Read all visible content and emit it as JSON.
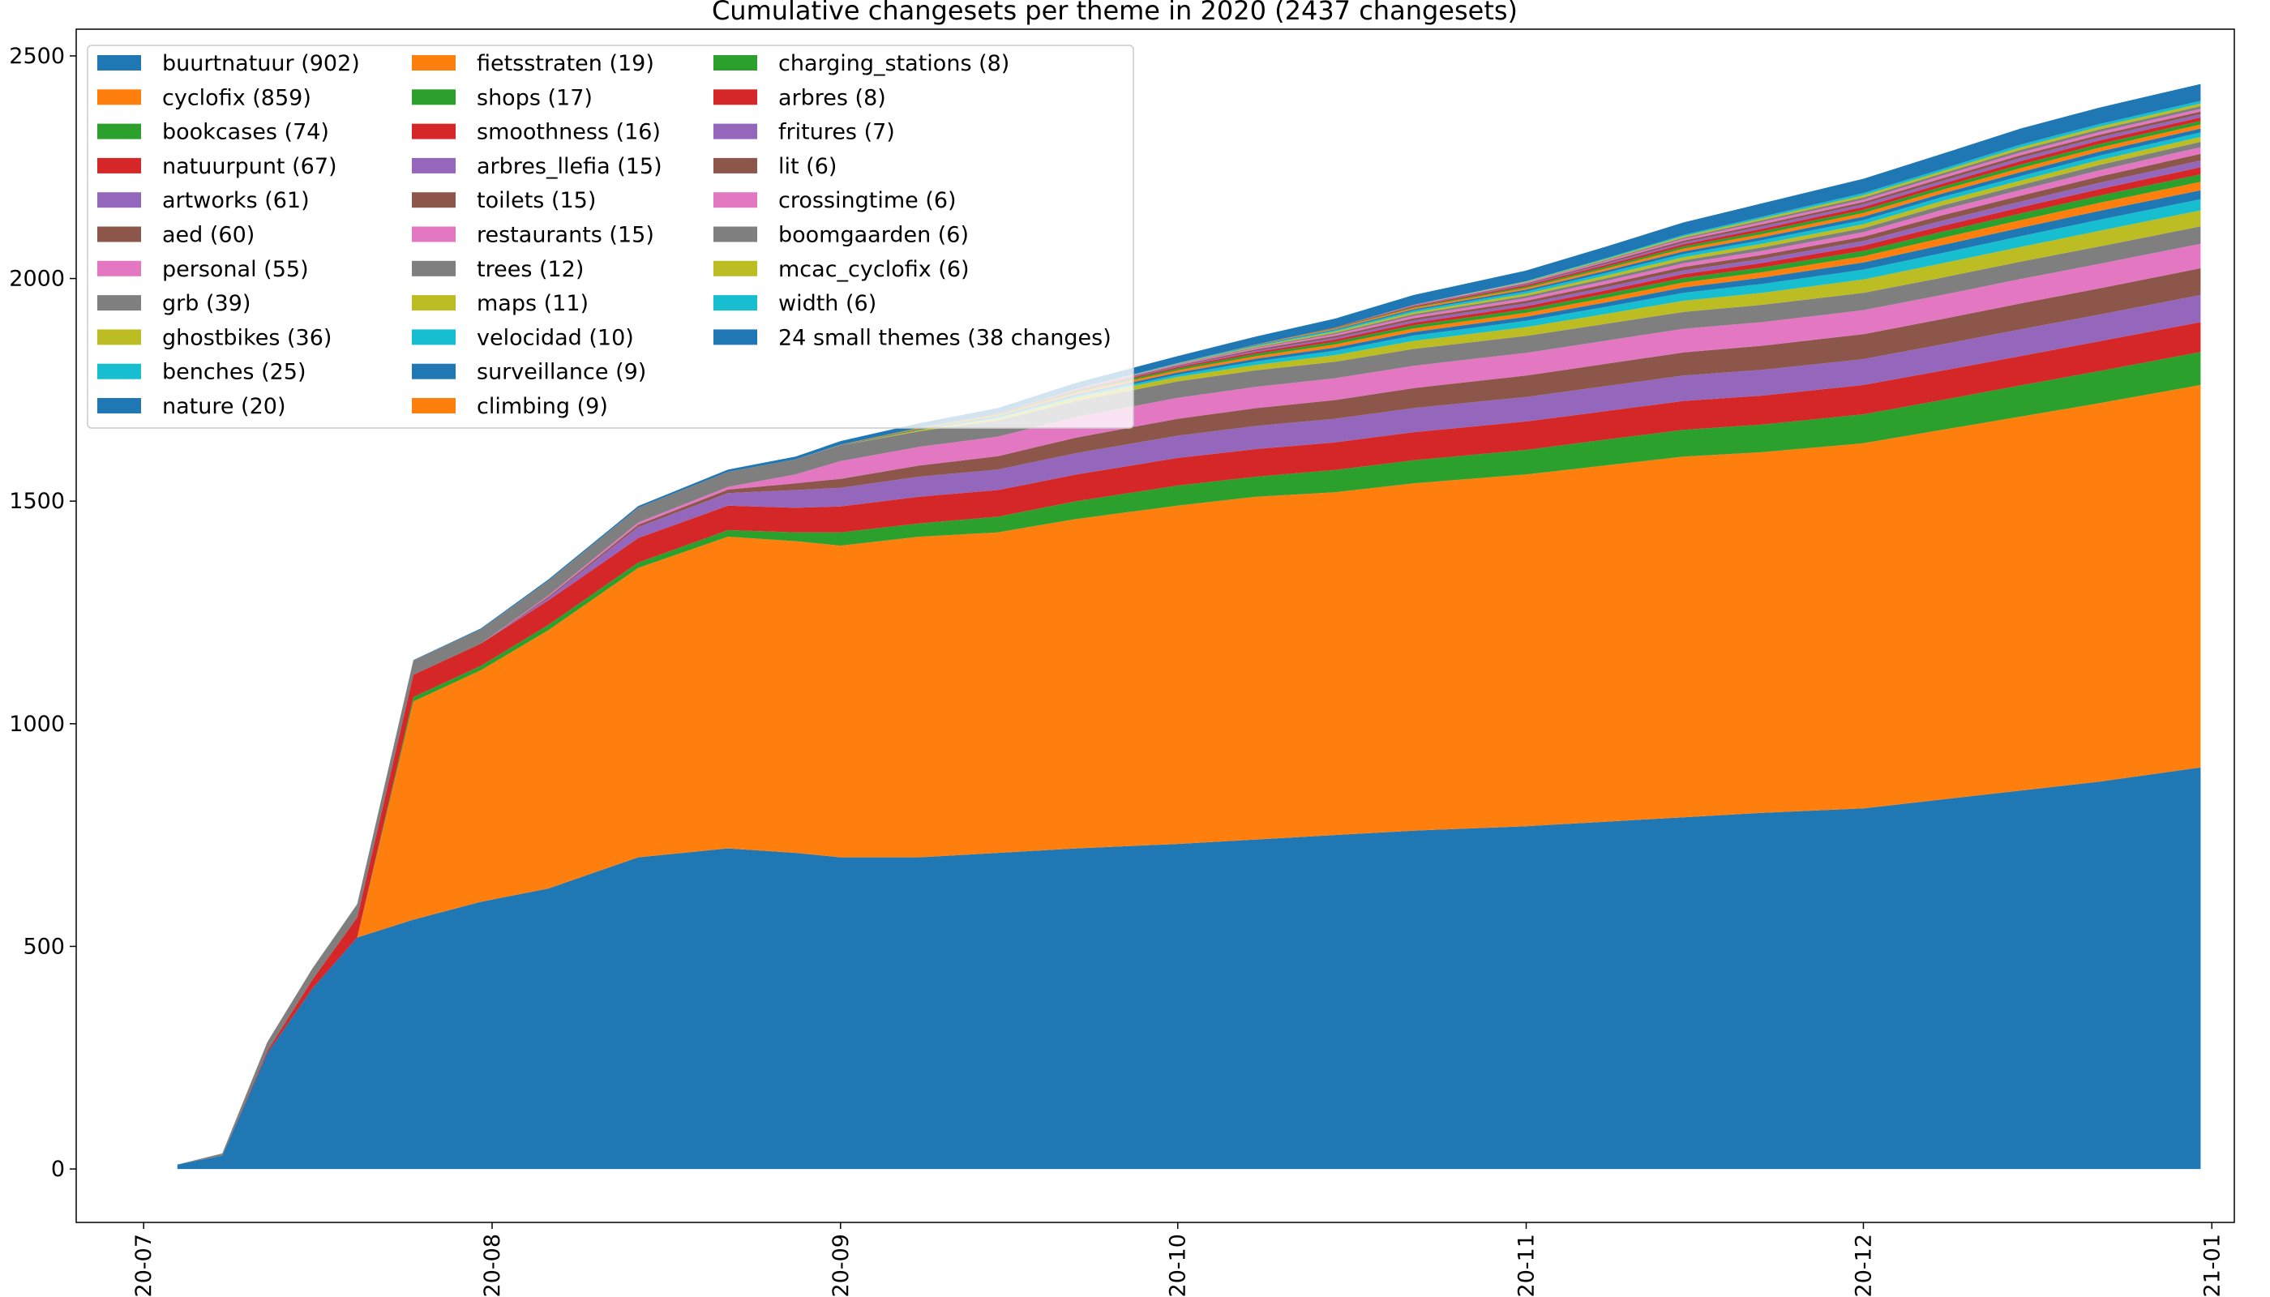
{
  "chart_data": {
    "type": "area",
    "stacked": true,
    "title": "Cumulative changesets per theme in 2020 (2437 changesets)",
    "xlabel": "",
    "ylabel": "",
    "ylim": [
      -120,
      2560
    ],
    "yticks": [
      0,
      500,
      1000,
      1500,
      2000,
      2500
    ],
    "xlim": [
      "2020-06-25",
      "2021-01-03"
    ],
    "xticks": [
      {
        "date": "2020-07-01",
        "label": "2020-07"
      },
      {
        "date": "2020-08-01",
        "label": "2020-08"
      },
      {
        "date": "2020-09-01",
        "label": "2020-09"
      },
      {
        "date": "2020-10-01",
        "label": "2020-10"
      },
      {
        "date": "2020-11-01",
        "label": "2020-11"
      },
      {
        "date": "2020-12-01",
        "label": "2020-12"
      },
      {
        "date": "2021-01-01",
        "label": "2021-01"
      }
    ],
    "legend_position": "top-left",
    "x": [
      "2020-07-04",
      "2020-07-08",
      "2020-07-12",
      "2020-07-16",
      "2020-07-20",
      "2020-07-25",
      "2020-07-31",
      "2020-08-06",
      "2020-08-14",
      "2020-08-22",
      "2020-08-28",
      "2020-09-01",
      "2020-09-08",
      "2020-09-15",
      "2020-09-22",
      "2020-10-01",
      "2020-10-08",
      "2020-10-15",
      "2020-10-22",
      "2020-11-01",
      "2020-11-08",
      "2020-11-15",
      "2020-11-22",
      "2020-12-01",
      "2020-12-08",
      "2020-12-15",
      "2020-12-22",
      "2020-12-31"
    ],
    "series": [
      {
        "name": "buurtnatuur (902)",
        "color": "#1f77b4",
        "values": [
          10,
          30,
          260,
          405,
          520,
          560,
          600,
          630,
          700,
          720,
          710,
          700,
          700,
          710,
          720,
          730,
          740,
          750,
          760,
          770,
          780,
          790,
          800,
          810,
          830,
          850,
          870,
          902
        ]
      },
      {
        "name": "cyclofix (859)",
        "color": "#ff7f0e",
        "values": [
          0,
          0,
          0,
          0,
          0,
          490,
          520,
          580,
          650,
          700,
          700,
          700,
          720,
          720,
          740,
          760,
          770,
          770,
          780,
          790,
          800,
          810,
          810,
          820,
          830,
          840,
          850,
          859
        ]
      },
      {
        "name": "bookcases (74)",
        "color": "#2ca02c",
        "values": [
          0,
          0,
          0,
          0,
          0,
          10,
          10,
          12,
          12,
          15,
          20,
          30,
          30,
          35,
          40,
          45,
          45,
          50,
          52,
          55,
          58,
          60,
          62,
          65,
          67,
          70,
          72,
          74
        ]
      },
      {
        "name": "natuurpunt (67)",
        "color": "#d62728",
        "values": [
          0,
          0,
          5,
          20,
          45,
          50,
          50,
          55,
          55,
          55,
          55,
          58,
          60,
          60,
          60,
          62,
          62,
          62,
          63,
          64,
          64,
          65,
          65,
          66,
          66,
          66,
          67,
          67
        ]
      },
      {
        "name": "artworks (61)",
        "color": "#9467bd",
        "values": [
          0,
          0,
          0,
          0,
          0,
          0,
          0,
          5,
          25,
          28,
          40,
          42,
          45,
          46,
          48,
          50,
          52,
          53,
          54,
          55,
          56,
          57,
          58,
          58,
          59,
          60,
          60,
          61
        ]
      },
      {
        "name": "aed (60)",
        "color": "#8c564b",
        "values": [
          0,
          0,
          0,
          0,
          0,
          0,
          0,
          3,
          5,
          8,
          15,
          20,
          25,
          30,
          35,
          38,
          40,
          42,
          45,
          48,
          50,
          52,
          54,
          56,
          57,
          58,
          59,
          60
        ]
      },
      {
        "name": "personal (55)",
        "color": "#e377c2",
        "values": [
          0,
          0,
          0,
          0,
          0,
          0,
          0,
          3,
          5,
          6,
          20,
          40,
          42,
          44,
          46,
          47,
          48,
          49,
          50,
          51,
          52,
          53,
          53,
          54,
          54,
          55,
          55,
          55
        ]
      },
      {
        "name": "grb (39)",
        "color": "#7f7f7f",
        "values": [
          0,
          5,
          20,
          25,
          30,
          32,
          32,
          33,
          33,
          34,
          34,
          35,
          35,
          36,
          36,
          37,
          37,
          37,
          38,
          38,
          38,
          38,
          39,
          39,
          39,
          39,
          39,
          39
        ]
      },
      {
        "name": "ghostbikes (36)",
        "color": "#bcbd22",
        "values": [
          0,
          0,
          0,
          0,
          0,
          0,
          0,
          0,
          0,
          0,
          0,
          0,
          3,
          5,
          8,
          10,
          12,
          15,
          18,
          20,
          22,
          25,
          27,
          30,
          32,
          33,
          35,
          36
        ]
      },
      {
        "name": "benches (25)",
        "color": "#17becf",
        "values": [
          0,
          0,
          0,
          0,
          0,
          0,
          0,
          0,
          0,
          0,
          0,
          0,
          0,
          2,
          3,
          5,
          8,
          10,
          12,
          14,
          16,
          18,
          20,
          22,
          23,
          24,
          25,
          25
        ]
      },
      {
        "name": "nature (20)",
        "color": "#1f77b4",
        "values": [
          0,
          0,
          0,
          0,
          0,
          0,
          0,
          0,
          0,
          0,
          0,
          1,
          2,
          3,
          4,
          5,
          6,
          7,
          8,
          9,
          10,
          12,
          14,
          16,
          18,
          19,
          20,
          20
        ]
      },
      {
        "name": "fietsstraten (19)",
        "color": "#ff7f0e",
        "values": [
          0,
          0,
          0,
          0,
          0,
          0,
          0,
          0,
          0,
          0,
          0,
          1,
          2,
          3,
          4,
          5,
          6,
          7,
          8,
          9,
          10,
          11,
          12,
          14,
          16,
          17,
          18,
          19
        ]
      },
      {
        "name": "shops (17)",
        "color": "#2ca02c",
        "values": [
          0,
          0,
          0,
          0,
          0,
          0,
          0,
          0,
          0,
          0,
          0,
          0,
          1,
          2,
          3,
          4,
          5,
          6,
          7,
          8,
          9,
          10,
          11,
          12,
          14,
          15,
          16,
          17
        ]
      },
      {
        "name": "smoothness (16)",
        "color": "#d62728",
        "values": [
          0,
          0,
          0,
          0,
          0,
          0,
          0,
          0,
          0,
          0,
          0,
          0,
          0,
          1,
          2,
          3,
          4,
          5,
          6,
          7,
          8,
          9,
          10,
          12,
          13,
          14,
          15,
          16
        ]
      },
      {
        "name": "arbres_llefia (15)",
        "color": "#9467bd",
        "values": [
          0,
          0,
          0,
          0,
          0,
          0,
          0,
          0,
          0,
          0,
          0,
          0,
          0,
          0,
          1,
          2,
          3,
          4,
          5,
          6,
          7,
          8,
          9,
          10,
          12,
          13,
          14,
          15
        ]
      },
      {
        "name": "toilets (15)",
        "color": "#8c564b",
        "values": [
          0,
          0,
          0,
          0,
          0,
          0,
          0,
          0,
          0,
          0,
          0,
          0,
          0,
          0,
          1,
          2,
          3,
          4,
          5,
          6,
          7,
          8,
          9,
          10,
          12,
          13,
          14,
          15
        ]
      },
      {
        "name": "restaurants (15)",
        "color": "#e377c2",
        "values": [
          0,
          0,
          0,
          0,
          0,
          0,
          0,
          0,
          0,
          0,
          0,
          0,
          0,
          0,
          1,
          2,
          3,
          4,
          5,
          6,
          7,
          8,
          9,
          10,
          12,
          13,
          14,
          15
        ]
      },
      {
        "name": "trees (12)",
        "color": "#7f7f7f",
        "values": [
          0,
          0,
          0,
          0,
          0,
          0,
          0,
          0,
          0,
          0,
          0,
          0,
          0,
          0,
          0,
          1,
          2,
          3,
          4,
          5,
          6,
          7,
          8,
          9,
          10,
          11,
          12,
          12
        ]
      },
      {
        "name": "maps (11)",
        "color": "#bcbd22",
        "values": [
          0,
          0,
          0,
          0,
          0,
          0,
          0,
          0,
          0,
          0,
          0,
          0,
          0,
          0,
          0,
          1,
          2,
          3,
          4,
          5,
          6,
          7,
          8,
          9,
          10,
          10,
          11,
          11
        ]
      },
      {
        "name": "velocidad (10)",
        "color": "#17becf",
        "values": [
          0,
          0,
          0,
          0,
          0,
          0,
          0,
          0,
          0,
          0,
          0,
          0,
          0,
          0,
          0,
          1,
          2,
          3,
          4,
          5,
          6,
          7,
          8,
          9,
          9,
          10,
          10,
          10
        ]
      },
      {
        "name": "surveillance (9)",
        "color": "#1f77b4",
        "values": [
          0,
          0,
          0,
          0,
          0,
          0,
          0,
          0,
          0,
          0,
          0,
          0,
          0,
          0,
          0,
          0,
          1,
          2,
          3,
          4,
          5,
          6,
          7,
          8,
          8,
          9,
          9,
          9
        ]
      },
      {
        "name": "climbing (9)",
        "color": "#ff7f0e",
        "values": [
          0,
          0,
          0,
          0,
          0,
          0,
          0,
          0,
          0,
          0,
          0,
          0,
          0,
          0,
          0,
          0,
          1,
          2,
          3,
          4,
          5,
          6,
          7,
          8,
          8,
          9,
          9,
          9
        ]
      },
      {
        "name": "charging_stations (8)",
        "color": "#2ca02c",
        "values": [
          0,
          0,
          0,
          0,
          0,
          0,
          0,
          0,
          0,
          0,
          0,
          0,
          0,
          0,
          0,
          0,
          0,
          1,
          2,
          3,
          4,
          5,
          6,
          7,
          7,
          8,
          8,
          8
        ]
      },
      {
        "name": "arbres (8)",
        "color": "#d62728",
        "values": [
          0,
          0,
          0,
          0,
          0,
          0,
          0,
          0,
          0,
          0,
          0,
          0,
          0,
          0,
          0,
          0,
          0,
          1,
          2,
          3,
          4,
          5,
          6,
          7,
          7,
          8,
          8,
          8
        ]
      },
      {
        "name": "fritures (7)",
        "color": "#9467bd",
        "values": [
          0,
          0,
          0,
          0,
          0,
          0,
          0,
          0,
          0,
          0,
          0,
          0,
          0,
          0,
          0,
          0,
          0,
          0,
          1,
          2,
          3,
          4,
          5,
          6,
          6,
          7,
          7,
          7
        ]
      },
      {
        "name": "lit (6)",
        "color": "#8c564b",
        "values": [
          0,
          0,
          0,
          0,
          0,
          0,
          0,
          0,
          0,
          0,
          0,
          0,
          0,
          0,
          0,
          0,
          0,
          0,
          1,
          2,
          3,
          4,
          5,
          5,
          6,
          6,
          6,
          6
        ]
      },
      {
        "name": "crossingtime (6)",
        "color": "#e377c2",
        "values": [
          0,
          0,
          0,
          0,
          0,
          0,
          0,
          0,
          0,
          0,
          0,
          0,
          0,
          0,
          0,
          0,
          0,
          0,
          1,
          2,
          3,
          4,
          5,
          5,
          6,
          6,
          6,
          6
        ]
      },
      {
        "name": "boomgaarden (6)",
        "color": "#7f7f7f",
        "values": [
          0,
          0,
          0,
          0,
          0,
          0,
          0,
          0,
          0,
          0,
          0,
          0,
          0,
          0,
          0,
          0,
          0,
          0,
          0,
          1,
          2,
          3,
          4,
          5,
          5,
          6,
          6,
          6
        ]
      },
      {
        "name": "mcac_cyclofix (6)",
        "color": "#bcbd22",
        "values": [
          0,
          0,
          0,
          0,
          0,
          0,
          0,
          0,
          0,
          0,
          0,
          0,
          0,
          0,
          0,
          0,
          0,
          0,
          0,
          1,
          2,
          3,
          4,
          5,
          5,
          6,
          6,
          6
        ]
      },
      {
        "name": "width (6)",
        "color": "#17becf",
        "values": [
          0,
          0,
          0,
          0,
          0,
          0,
          0,
          0,
          0,
          0,
          0,
          0,
          0,
          0,
          0,
          0,
          0,
          0,
          0,
          1,
          2,
          3,
          4,
          5,
          5,
          6,
          6,
          6
        ]
      },
      {
        "name": "24 small themes (38 changes)",
        "color": "#1f77b4",
        "values": [
          0,
          0,
          0,
          0,
          0,
          1,
          2,
          3,
          4,
          5,
          6,
          8,
          10,
          12,
          14,
          16,
          18,
          20,
          22,
          24,
          26,
          28,
          30,
          32,
          34,
          36,
          37,
          38
        ]
      }
    ]
  }
}
